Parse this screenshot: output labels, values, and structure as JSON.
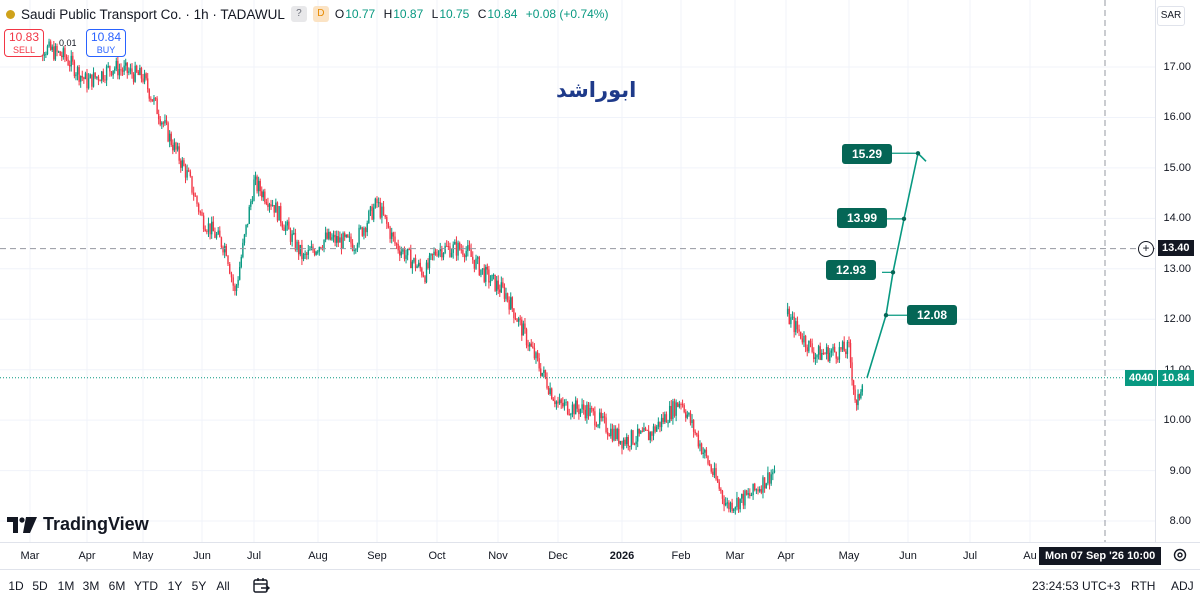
{
  "header": {
    "title": "Saudi Public Transport Co. · 1h · TADAWUL",
    "ohlc": [
      {
        "label": "O",
        "value": "10.77"
      },
      {
        "label": "H",
        "value": "10.87"
      },
      {
        "label": "L",
        "value": "10.75"
      },
      {
        "label": "C",
        "value": "10.84"
      }
    ],
    "change": "+0.08 (+0.74%)",
    "badges": [
      "?",
      "D"
    ],
    "colors": {
      "up": "#089981",
      "down": "#f23645",
      "target_label": "#056656",
      "annotation": "#1e3a8a"
    }
  },
  "trade": {
    "sell_price": "10.83",
    "sell_label": "SELL",
    "buy_price": "10.84",
    "buy_label": "BUY",
    "spread": "0.01"
  },
  "annotation_text": "ابوراشد",
  "logo_text": "TradingView",
  "price_axis": {
    "currency": "SAR",
    "ticks": [
      "17.00",
      "16.00",
      "15.00",
      "14.00",
      "13.00",
      "12.00",
      "11.00",
      "10.00",
      "9.00",
      "8.00"
    ],
    "crosshair_price": "13.40",
    "last_price": "10.84",
    "volume": "4040"
  },
  "targets": [
    "15.29",
    "13.99",
    "12.93",
    "12.08"
  ],
  "time_axis": {
    "ticks": [
      {
        "label": "Mar",
        "bold": false
      },
      {
        "label": "Apr",
        "bold": false
      },
      {
        "label": "May",
        "bold": false
      },
      {
        "label": "Jun",
        "bold": false
      },
      {
        "label": "Jul",
        "bold": false
      },
      {
        "label": "Aug",
        "bold": false
      },
      {
        "label": "Sep",
        "bold": false
      },
      {
        "label": "Oct",
        "bold": false
      },
      {
        "label": "Nov",
        "bold": false
      },
      {
        "label": "Dec",
        "bold": false
      },
      {
        "label": "2026",
        "bold": true
      },
      {
        "label": "Feb",
        "bold": false
      },
      {
        "label": "Mar",
        "bold": false
      },
      {
        "label": "Apr",
        "bold": false
      },
      {
        "label": "May",
        "bold": false
      },
      {
        "label": "Jun",
        "bold": false
      },
      {
        "label": "Jul",
        "bold": false
      },
      {
        "label": "Au",
        "bold": false
      }
    ],
    "crosshair_time": "Mon 07 Sep '26   10:00"
  },
  "bottom_bar": {
    "ranges": [
      "1D",
      "5D",
      "1M",
      "3M",
      "6M",
      "YTD",
      "1Y",
      "5Y",
      "All"
    ],
    "clock": "23:24:53 UTC+3",
    "session": "RTH",
    "adj": "ADJ"
  },
  "chart_data": {
    "type": "candlestick",
    "symbol": "Saudi Public Transport Co.",
    "interval": "1h",
    "exchange": "TADAWUL",
    "currency": "SAR",
    "ylim": [
      7.75,
      17.45
    ],
    "series": [
      {
        "name": "price",
        "x": [
          "2025-03-01",
          "2025-03-20",
          "2025-04-01",
          "2025-04-15",
          "2025-05-01",
          "2025-05-15",
          "2025-05-25",
          "2025-06-01",
          "2025-06-15",
          "2025-06-20",
          "2025-07-01",
          "2025-07-10",
          "2025-07-25",
          "2025-08-05",
          "2025-08-20",
          "2025-09-01",
          "2025-09-10",
          "2025-09-25",
          "2025-10-01",
          "2025-10-15",
          "2025-10-25",
          "2025-11-05",
          "2025-11-20",
          "2025-12-01",
          "2025-12-15",
          "2026-01-01",
          "2026-01-15",
          "2026-02-01",
          "2026-02-10",
          "2026-02-25",
          "2026-03-10",
          "2026-03-25",
          "2026-04-01",
          "2026-04-15",
          "2026-05-01",
          "2026-05-05",
          "2026-05-08"
        ],
        "values": [
          17.5,
          17.2,
          16.7,
          17.0,
          16.8,
          15.6,
          14.8,
          14.0,
          13.4,
          12.5,
          14.7,
          14.3,
          13.2,
          13.6,
          13.5,
          14.3,
          13.5,
          12.9,
          13.4,
          13.4,
          12.9,
          12.5,
          11.2,
          10.3,
          10.2,
          9.6,
          9.7,
          10.4,
          9.6,
          8.3,
          8.5,
          9.0,
          12.1,
          11.3,
          11.4,
          10.2,
          10.84
        ]
      }
    ],
    "targets": [
      12.08,
      12.93,
      13.99,
      15.29
    ],
    "target_path_start": 10.84,
    "last_price": 10.84,
    "crosshair_price": 13.4,
    "annotations": [
      "ابوراشد"
    ]
  }
}
